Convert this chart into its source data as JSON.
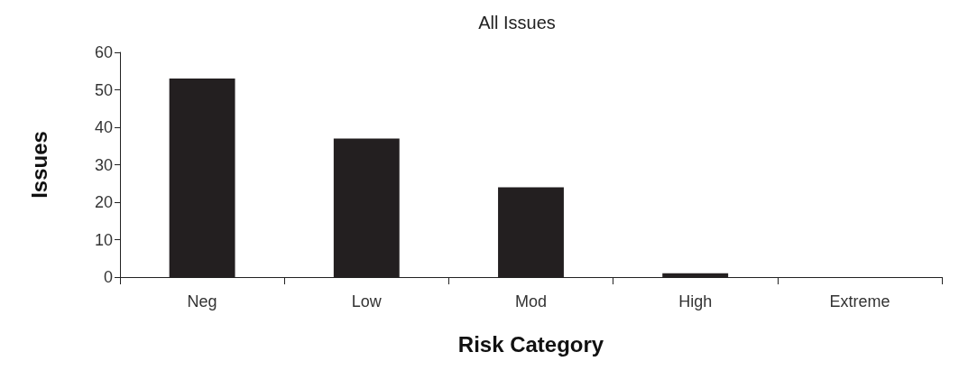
{
  "chart_data": {
    "type": "bar",
    "title": "All Issues",
    "xlabel": "Risk Category",
    "ylabel": "Issues",
    "categories": [
      "Neg",
      "Low",
      "Mod",
      "High",
      "Extreme"
    ],
    "values": [
      53,
      37,
      24,
      1,
      0
    ],
    "color": "#231f20",
    "ylim": [
      0,
      60
    ],
    "yticks": [
      0,
      10,
      20,
      30,
      40,
      50,
      60
    ],
    "grid": false
  }
}
